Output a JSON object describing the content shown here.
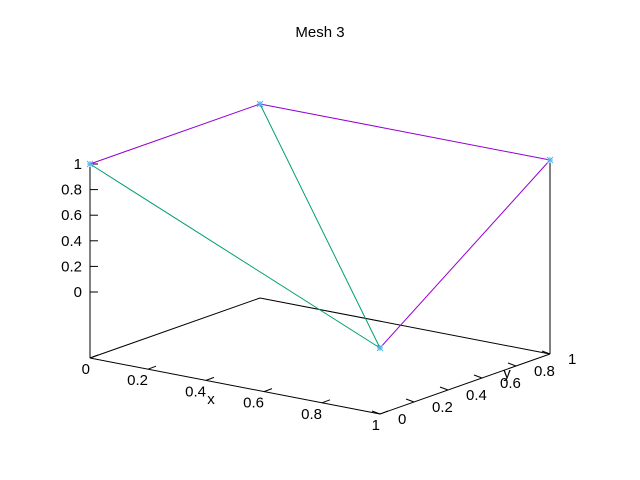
{
  "chart_data": {
    "type": "mesh3d",
    "title": "Mesh 3",
    "xlabel": "x",
    "ylabel": "y",
    "zlabel": "",
    "xlim": [
      0,
      1
    ],
    "ylim": [
      0,
      1
    ],
    "zlim": [
      0,
      1
    ],
    "x_ticks": [
      "0",
      "0.2",
      "0.4",
      "0.6",
      "0.8",
      "1"
    ],
    "y_ticks": [
      "0",
      "0.2",
      "0.4",
      "0.6",
      "0.8",
      "1"
    ],
    "z_ticks": [
      "0",
      "0.2",
      "0.4",
      "0.6",
      "0.8",
      "1"
    ],
    "grid": false,
    "vertices": [
      {
        "x": 0,
        "y": 0,
        "z": 1
      },
      {
        "x": 0,
        "y": 1,
        "z": 1
      },
      {
        "x": 1,
        "y": 0,
        "z": 0
      },
      {
        "x": 1,
        "y": 1,
        "z": 1
      }
    ],
    "edges": [
      {
        "from": 0,
        "to": 1,
        "color": "#9400d3"
      },
      {
        "from": 1,
        "to": 3,
        "color": "#9400d3"
      },
      {
        "from": 3,
        "to": 2,
        "color": "#9400d3"
      },
      {
        "from": 0,
        "to": 2,
        "color": "#009e73"
      },
      {
        "from": 1,
        "to": 2,
        "color": "#009e73"
      }
    ],
    "colors": {
      "line_primary": "#9400d3",
      "line_secondary": "#009e73",
      "marker": "#56b4e9",
      "axis": "#000000"
    }
  }
}
